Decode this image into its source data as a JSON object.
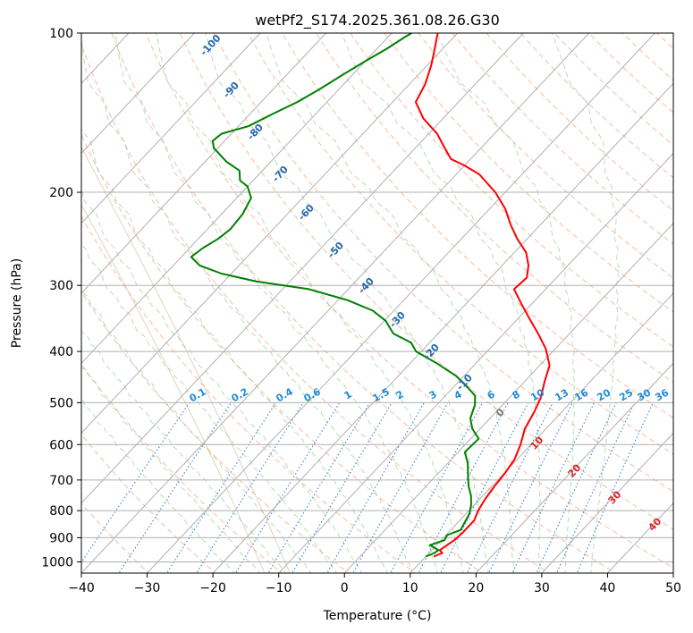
{
  "chart_data": {
    "type": "line",
    "title": "wetPf2_S174.2025.361.08.26.G30",
    "xlabel": "Temperature (°C)",
    "ylabel": "Pressure (hPa)",
    "xlim": [
      -40,
      50
    ],
    "ylim": [
      1050,
      100
    ],
    "y_scale": "log",
    "grid": true,
    "x_ticks": [
      -40,
      -30,
      -20,
      -10,
      0,
      10,
      20,
      30,
      40,
      50
    ],
    "y_ticks": [
      100,
      200,
      300,
      400,
      500,
      600,
      700,
      800,
      900,
      1000
    ],
    "skew": true,
    "series": [
      {
        "color": "#ff0000",
        "points": [
          [
            11.2,
            977
          ],
          [
            12.0,
            962
          ],
          [
            11.2,
            950
          ],
          [
            12.0,
            910
          ],
          [
            12.2,
            880
          ],
          [
            12.2,
            835
          ],
          [
            11.4,
            800
          ],
          [
            10.8,
            760
          ],
          [
            10.4,
            720
          ],
          [
            10.2,
            690
          ],
          [
            10.0,
            670
          ],
          [
            9.6,
            640
          ],
          [
            8.4,
            600
          ],
          [
            6.8,
            560
          ],
          [
            5.8,
            520
          ],
          [
            4.8,
            490
          ],
          [
            3.0,
            455
          ],
          [
            1.5,
            425
          ],
          [
            -1.5,
            395
          ],
          [
            -4.8,
            370
          ],
          [
            -8.5,
            345
          ],
          [
            -11.6,
            325
          ],
          [
            -14.8,
            305
          ],
          [
            -14.5,
            290
          ],
          [
            -16.0,
            275
          ],
          [
            -18.2,
            260
          ],
          [
            -21.5,
            245
          ],
          [
            -24.6,
            230
          ],
          [
            -27.6,
            215
          ],
          [
            -31.5,
            200
          ],
          [
            -36.5,
            185
          ],
          [
            -40.0,
            178
          ],
          [
            -43.0,
            173
          ],
          [
            -45.5,
            165
          ],
          [
            -48.7,
            155
          ],
          [
            -53.0,
            145
          ],
          [
            -56.5,
            135
          ],
          [
            -57.6,
            125
          ],
          [
            -59.4,
            115
          ],
          [
            -61.0,
            108
          ],
          [
            -62.5,
            102
          ],
          [
            -63.0,
            100
          ]
        ]
      },
      {
        "color": "#008000",
        "points": [
          [
            10.0,
            977
          ],
          [
            10.8,
            962
          ],
          [
            11.0,
            950
          ],
          [
            9.0,
            930
          ],
          [
            10.5,
            910
          ],
          [
            10.2,
            890
          ],
          [
            11.5,
            870
          ],
          [
            11.0,
            840
          ],
          [
            10.5,
            810
          ],
          [
            9.5,
            780
          ],
          [
            8.2,
            750
          ],
          [
            6.5,
            720
          ],
          [
            5.0,
            690
          ],
          [
            3.0,
            650
          ],
          [
            1.0,
            620
          ],
          [
            1.2,
            585
          ],
          [
            -1.2,
            560
          ],
          [
            -3.0,
            535
          ],
          [
            -4.2,
            505
          ],
          [
            -5.5,
            485
          ],
          [
            -7.5,
            470
          ],
          [
            -11.2,
            445
          ],
          [
            -16.2,
            420
          ],
          [
            -20.8,
            400
          ],
          [
            -22.8,
            385
          ],
          [
            -26.8,
            370
          ],
          [
            -29.8,
            350
          ],
          [
            -33.2,
            335
          ],
          [
            -38.5,
            320
          ],
          [
            -46.0,
            305
          ],
          [
            -55.0,
            295
          ],
          [
            -61.5,
            285
          ],
          [
            -66.0,
            275
          ],
          [
            -68.5,
            265
          ],
          [
            -68.0,
            255
          ],
          [
            -67.0,
            245
          ],
          [
            -66.5,
            235
          ],
          [
            -66.8,
            220
          ],
          [
            -67.8,
            205
          ],
          [
            -70.0,
            195
          ],
          [
            -72.0,
            190
          ],
          [
            -73.5,
            182
          ],
          [
            -76.8,
            175
          ],
          [
            -80.6,
            165
          ],
          [
            -81.8,
            160
          ],
          [
            -81.5,
            155
          ],
          [
            -78.5,
            150
          ],
          [
            -76.5,
            142
          ],
          [
            -74.5,
            135
          ],
          [
            -73.0,
            128
          ],
          [
            -71.5,
            120
          ],
          [
            -70.0,
            113
          ],
          [
            -68.5,
            107
          ],
          [
            -67.5,
            102
          ],
          [
            -67.0,
            100
          ]
        ]
      }
    ],
    "dry_adiabat_labels": [
      "-100",
      "-90",
      "-80",
      "-70",
      "-60",
      "-50",
      "-40",
      "-30",
      "-20",
      "-10",
      "0",
      "10",
      "20",
      "30",
      "40"
    ],
    "mixing_ratio_labels": [
      "0.1",
      "0.2",
      "0.4",
      "0.6",
      "1",
      "1.5",
      "2",
      "3",
      "4",
      "6",
      "8",
      "10",
      "13",
      "16",
      "20",
      "25",
      "30",
      "36"
    ]
  }
}
